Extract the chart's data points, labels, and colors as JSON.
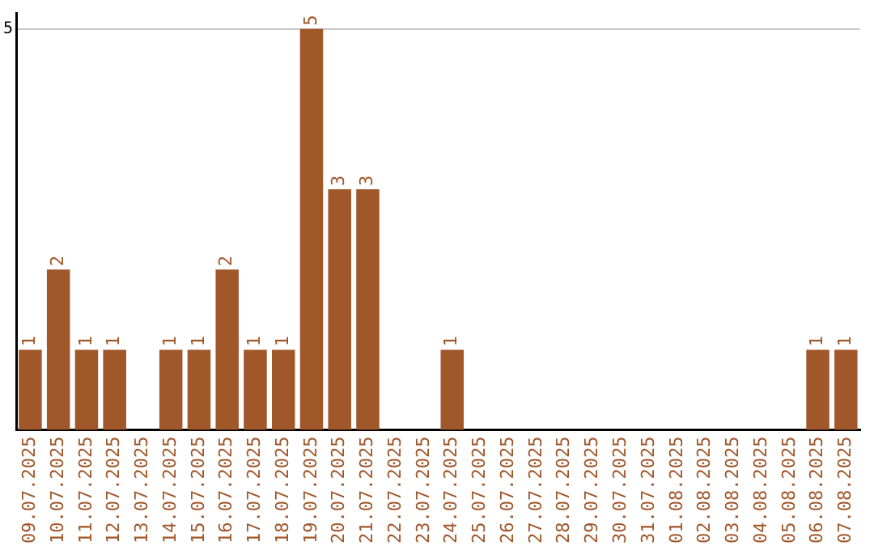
{
  "chart_data": {
    "type": "bar",
    "categories": [
      "09.07.2025",
      "10.07.2025",
      "11.07.2025",
      "12.07.2025",
      "13.07.2025",
      "14.07.2025",
      "15.07.2025",
      "16.07.2025",
      "17.07.2025",
      "18.07.2025",
      "19.07.2025",
      "20.07.2025",
      "21.07.2025",
      "22.07.2025",
      "23.07.2025",
      "24.07.2025",
      "25.07.2025",
      "26.07.2025",
      "27.07.2025",
      "28.07.2025",
      "29.07.2025",
      "30.07.2025",
      "31.07.2025",
      "01.08.2025",
      "02.08.2025",
      "03.08.2025",
      "04.08.2025",
      "05.08.2025",
      "06.08.2025",
      "07.08.2025"
    ],
    "values": [
      1,
      2,
      1,
      1,
      0,
      1,
      1,
      2,
      1,
      1,
      5,
      3,
      3,
      0,
      0,
      1,
      0,
      0,
      0,
      0,
      0,
      0,
      0,
      0,
      0,
      0,
      0,
      0,
      1,
      1
    ],
    "value_labels": [
      "1",
      "2",
      "1",
      "1",
      null,
      "1",
      "1",
      "2",
      "1",
      "1",
      "5",
      "3",
      "3",
      null,
      null,
      "1",
      null,
      null,
      null,
      null,
      null,
      null,
      null,
      null,
      null,
      null,
      null,
      null,
      "1",
      "1"
    ],
    "color": "#a0572a",
    "ylim": [
      0,
      5.2
    ],
    "yticks": [
      5
    ],
    "grid": "y",
    "legend": false
  }
}
